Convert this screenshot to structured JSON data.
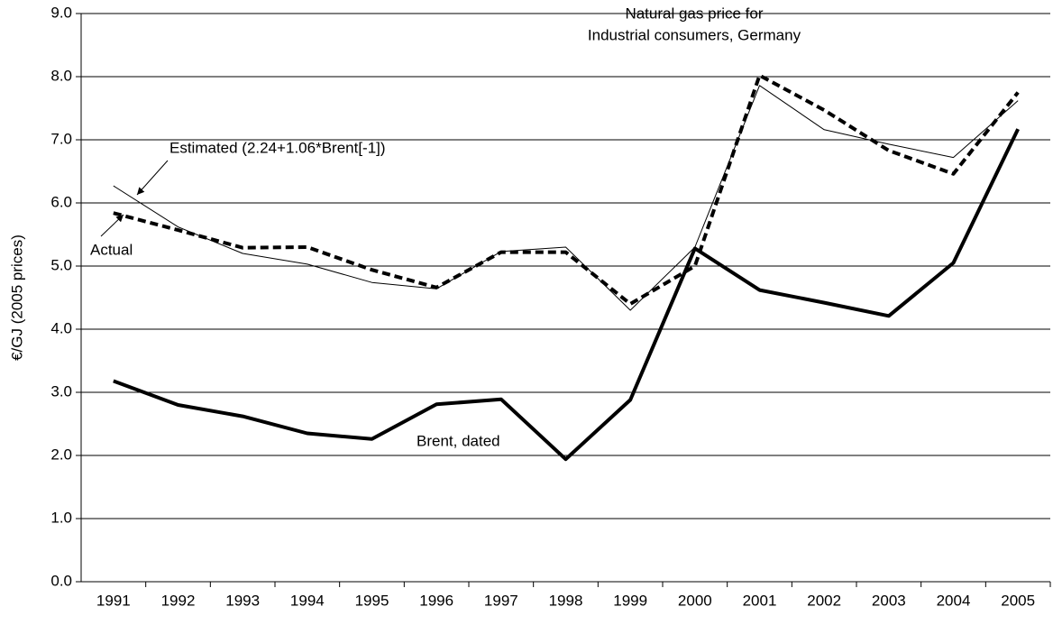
{
  "chart_data": {
    "type": "line",
    "title": [
      "Natural gas price for",
      "Industrial consumers, Germany"
    ],
    "y_label": "€/GJ (2005 prices)",
    "categories": [
      "1991",
      "1992",
      "1993",
      "1994",
      "1995",
      "1996",
      "1997",
      "1998",
      "1999",
      "2000",
      "2001",
      "2002",
      "2003",
      "2004",
      "2005"
    ],
    "series": [
      {
        "name": "Estimated (2.24+1.06*Brent[-1])",
        "color": "#000000",
        "width": 1,
        "dashed": false,
        "values": [
          6.27,
          5.62,
          5.2,
          5.03,
          4.74,
          4.64,
          5.23,
          5.3,
          4.3,
          5.3,
          7.86,
          7.16,
          6.93,
          6.72,
          7.62
        ]
      },
      {
        "name": "Actual",
        "color": "#000000",
        "width": 4,
        "dashed": true,
        "values": [
          5.84,
          5.57,
          5.29,
          5.3,
          4.94,
          4.66,
          5.22,
          5.22,
          4.4,
          5.0,
          8.02,
          7.47,
          6.83,
          6.46,
          7.75
        ]
      },
      {
        "name": "Brent, dated",
        "color": "#000000",
        "width": 4,
        "dashed": false,
        "values": [
          3.18,
          2.8,
          2.62,
          2.35,
          2.26,
          2.81,
          2.89,
          1.94,
          2.88,
          5.28,
          4.62,
          4.42,
          4.21,
          5.05,
          7.17
        ]
      }
    ],
    "ylim": [
      0,
      9
    ],
    "yticks": [
      {
        "value": 0,
        "label": "0.0"
      },
      {
        "value": 1,
        "label": "1.0"
      },
      {
        "value": 2,
        "label": "2.0"
      },
      {
        "value": 3,
        "label": "3.0"
      },
      {
        "value": 4,
        "label": "4.0"
      },
      {
        "value": 5,
        "label": "5.0"
      },
      {
        "value": 6,
        "label": "6.0"
      },
      {
        "value": 7,
        "label": "7.0"
      },
      {
        "value": 8,
        "label": "8.0"
      },
      {
        "value": 9,
        "label": "9.0"
      }
    ],
    "grid": true
  }
}
